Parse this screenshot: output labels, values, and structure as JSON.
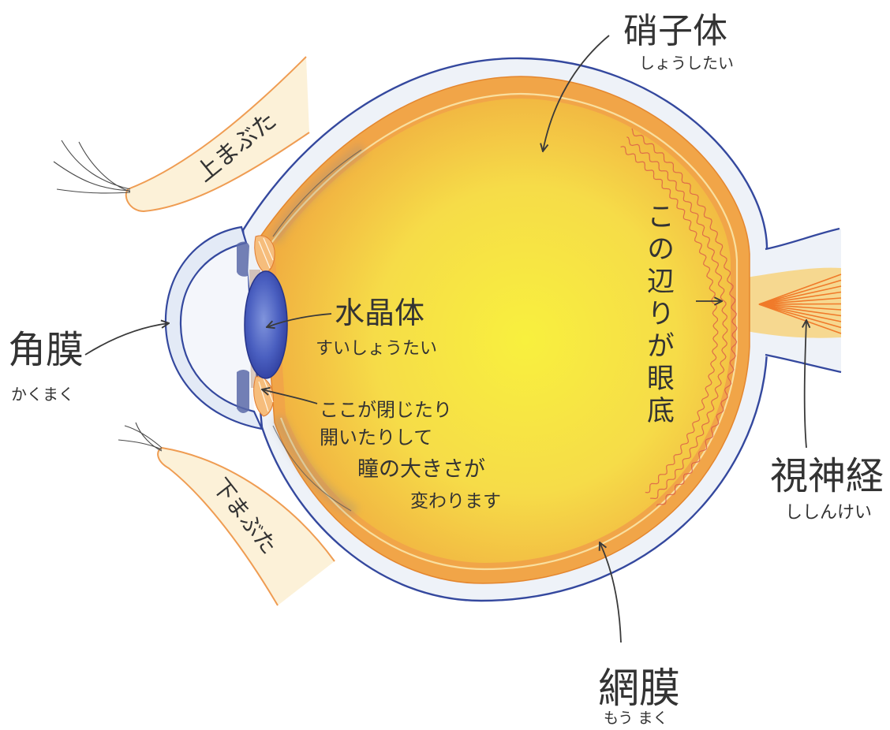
{
  "diagram": {
    "vitreous": {
      "name": "硝子体",
      "reading": "しょうしたい"
    },
    "upper_eyelid": {
      "name": "上まぶた"
    },
    "cornea": {
      "name": "角膜",
      "reading": "かくまく"
    },
    "lens": {
      "name": "水晶体",
      "reading": "すいしょうたい"
    },
    "iris": {
      "note_lines": [
        "ここが閉じたり",
        "開いたりして",
        "瞳の大きさが",
        "変わります"
      ]
    },
    "lower_eyelid": {
      "name": "下まぶた"
    },
    "fundus": {
      "note": "この辺りが眼底"
    },
    "optic_nerve": {
      "name": "視神経",
      "reading": "ししんけい"
    },
    "retina": {
      "name": "網膜",
      "reading": "もう まく"
    }
  },
  "colors": {
    "sclera_outline": "#34489e",
    "sclera_fill": "#eef2f8",
    "choroid": "#f1a548",
    "vitreous_center": "#f8f03e",
    "vitreous_edge": "#f0aa40",
    "lens": "#4a5fc0",
    "cornea_fill": "#e3eaf6",
    "eyelid_fill": "#fcf1d8",
    "eyelid_outline": "#ef9c52",
    "blood_vessel": "#d9574a",
    "nerve_fiber": "#f07a2a",
    "label_text": "#333333"
  }
}
